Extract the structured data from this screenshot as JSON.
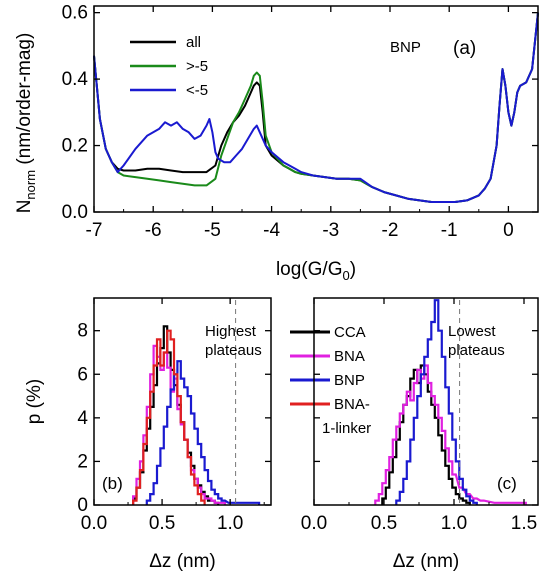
{
  "chart_data": [
    {
      "type": "line",
      "panel_label": "(a)",
      "annotation": "BNP",
      "xlabel": "log(G/G",
      "xlabel_sub": "0",
      "xlabel_close": ")",
      "ylabel_main": "N",
      "ylabel_sub": "norm",
      "ylabel_rest": " (nm/order-mag)",
      "xlim": [
        -7.0,
        0.5
      ],
      "ylim": [
        0.0,
        0.62
      ],
      "xticks": [
        -7,
        -6,
        -5,
        -4,
        -3,
        -2,
        -1,
        0
      ],
      "yticks": [
        0.0,
        0.2,
        0.4,
        0.6
      ],
      "ytick_labels": [
        "0.0",
        "0.2",
        "0.4",
        "0.6"
      ],
      "legend_position": "top-left",
      "series": [
        {
          "name": "all",
          "color": "#000000",
          "x": [
            -7.0,
            -6.9,
            -6.8,
            -6.7,
            -6.6,
            -6.5,
            -6.3,
            -6.1,
            -5.9,
            -5.7,
            -5.5,
            -5.3,
            -5.1,
            -4.95,
            -4.85,
            -4.75,
            -4.65,
            -4.55,
            -4.45,
            -4.35,
            -4.3,
            -4.25,
            -4.2,
            -4.15,
            -4.1,
            -4.0,
            -3.9,
            -3.8,
            -3.7,
            -3.6,
            -3.5,
            -3.3,
            -3.1,
            -2.9,
            -2.7,
            -2.5,
            -2.3,
            -2.1,
            -1.9,
            -1.7,
            -1.5,
            -1.3,
            -1.1,
            -0.9,
            -0.7,
            -0.5,
            -0.4,
            -0.3,
            -0.2,
            -0.15,
            -0.1,
            -0.05,
            0.0,
            0.05,
            0.1,
            0.15,
            0.2,
            0.3,
            0.4,
            0.5
          ],
          "y": [
            0.47,
            0.28,
            0.19,
            0.15,
            0.13,
            0.125,
            0.125,
            0.13,
            0.13,
            0.125,
            0.12,
            0.12,
            0.12,
            0.14,
            0.2,
            0.24,
            0.27,
            0.29,
            0.32,
            0.36,
            0.38,
            0.39,
            0.38,
            0.3,
            0.2,
            0.17,
            0.155,
            0.14,
            0.13,
            0.12,
            0.115,
            0.11,
            0.105,
            0.1,
            0.1,
            0.095,
            0.075,
            0.06,
            0.05,
            0.04,
            0.035,
            0.03,
            0.03,
            0.03,
            0.035,
            0.05,
            0.07,
            0.1,
            0.2,
            0.32,
            0.43,
            0.38,
            0.3,
            0.26,
            0.3,
            0.36,
            0.38,
            0.39,
            0.43,
            0.6
          ]
        },
        {
          "name": ">-5",
          "color": "#1a8a1a",
          "x": [
            -7.0,
            -6.9,
            -6.8,
            -6.7,
            -6.6,
            -6.5,
            -6.3,
            -6.1,
            -5.9,
            -5.7,
            -5.5,
            -5.3,
            -5.1,
            -4.95,
            -4.85,
            -4.75,
            -4.65,
            -4.55,
            -4.45,
            -4.35,
            -4.3,
            -4.25,
            -4.2,
            -4.15,
            -4.1,
            -4.0,
            -3.9,
            -3.8,
            -3.7,
            -3.6,
            -3.5,
            -3.3,
            -3.1,
            -2.9,
            -2.7,
            -2.5,
            -2.3,
            -2.1,
            -1.9,
            -1.7,
            -1.5,
            -1.3,
            -1.1,
            -0.9,
            -0.7,
            -0.5,
            -0.4,
            -0.3,
            -0.2,
            -0.15,
            -0.1,
            -0.05,
            0.0,
            0.05,
            0.1,
            0.15,
            0.2,
            0.3,
            0.4,
            0.5
          ],
          "y": [
            0.47,
            0.28,
            0.19,
            0.15,
            0.12,
            0.11,
            0.105,
            0.1,
            0.095,
            0.09,
            0.085,
            0.08,
            0.08,
            0.1,
            0.17,
            0.22,
            0.27,
            0.3,
            0.34,
            0.38,
            0.41,
            0.42,
            0.41,
            0.33,
            0.23,
            0.18,
            0.16,
            0.14,
            0.13,
            0.12,
            0.115,
            0.11,
            0.105,
            0.1,
            0.1,
            0.095,
            0.075,
            0.06,
            0.05,
            0.04,
            0.035,
            0.03,
            0.03,
            0.03,
            0.035,
            0.05,
            0.07,
            0.1,
            0.2,
            0.32,
            0.43,
            0.38,
            0.3,
            0.26,
            0.3,
            0.36,
            0.38,
            0.39,
            0.43,
            0.6
          ]
        },
        {
          "name": "<-5",
          "color": "#1a1ad0",
          "x": [
            -7.0,
            -6.9,
            -6.8,
            -6.7,
            -6.6,
            -6.5,
            -6.3,
            -6.1,
            -5.9,
            -5.8,
            -5.7,
            -5.6,
            -5.5,
            -5.4,
            -5.3,
            -5.2,
            -5.1,
            -5.05,
            -5.0,
            -4.95,
            -4.9,
            -4.8,
            -4.7,
            -4.6,
            -4.5,
            -4.4,
            -4.3,
            -4.25,
            -4.2,
            -4.1,
            -4.0,
            -3.9,
            -3.8,
            -3.7,
            -3.6,
            -3.5,
            -3.3,
            -3.1,
            -2.9,
            -2.7,
            -2.5,
            -2.3,
            -2.1,
            -1.9,
            -1.7,
            -1.5,
            -1.3,
            -1.1,
            -0.9,
            -0.7,
            -0.5,
            -0.4,
            -0.3,
            -0.2,
            -0.15,
            -0.1,
            -0.05,
            0.0,
            0.05,
            0.1,
            0.15,
            0.2,
            0.3,
            0.4,
            0.5
          ],
          "y": [
            0.47,
            0.28,
            0.19,
            0.15,
            0.12,
            0.14,
            0.19,
            0.23,
            0.25,
            0.27,
            0.26,
            0.27,
            0.25,
            0.24,
            0.22,
            0.23,
            0.26,
            0.28,
            0.24,
            0.18,
            0.16,
            0.15,
            0.15,
            0.17,
            0.19,
            0.22,
            0.25,
            0.26,
            0.24,
            0.2,
            0.18,
            0.165,
            0.15,
            0.14,
            0.13,
            0.12,
            0.11,
            0.105,
            0.1,
            0.1,
            0.1,
            0.075,
            0.06,
            0.05,
            0.04,
            0.035,
            0.03,
            0.03,
            0.03,
            0.035,
            0.05,
            0.07,
            0.1,
            0.2,
            0.32,
            0.43,
            0.38,
            0.3,
            0.26,
            0.3,
            0.36,
            0.38,
            0.39,
            0.43,
            0.6
          ]
        }
      ]
    },
    {
      "type": "histogram",
      "panel_label": "(b)",
      "annotation": [
        "Highest",
        "plateaus"
      ],
      "xlabel": "Δz (nm)",
      "ylabel": "p (%)",
      "xlim": [
        0.0,
        1.3
      ],
      "ylim": [
        0,
        9.5
      ],
      "xticks": [
        0.0,
        0.5,
        1.0
      ],
      "xtick_labels": [
        "0.0",
        "0.5",
        "1.0"
      ],
      "yticks": [
        0,
        2,
        4,
        6,
        8
      ],
      "dashed_line_x": 1.04,
      "bin_width": 0.025,
      "series": [
        {
          "name": "CCA",
          "color": "#000000",
          "x": [
            0.3,
            0.325,
            0.35,
            0.375,
            0.4,
            0.425,
            0.45,
            0.475,
            0.5,
            0.525,
            0.55,
            0.575,
            0.6,
            0.625,
            0.65,
            0.675,
            0.7,
            0.725,
            0.75,
            0.775,
            0.8,
            0.825,
            0.85,
            0.875,
            0.9
          ],
          "values": [
            0.3,
            0.8,
            1.5,
            2.5,
            3.5,
            4.5,
            5.5,
            6.5,
            7.2,
            8.2,
            7.0,
            6.2,
            5.5,
            4.6,
            3.8,
            3.0,
            2.4,
            1.8,
            1.2,
            0.9,
            0.6,
            0.4,
            0.2,
            0.2,
            0.1
          ]
        },
        {
          "name": "BNA",
          "color": "#e020e0",
          "x": [
            0.3,
            0.325,
            0.35,
            0.375,
            0.4,
            0.425,
            0.45,
            0.475,
            0.5,
            0.525,
            0.55,
            0.575,
            0.6,
            0.625,
            0.65,
            0.675,
            0.7,
            0.725,
            0.75,
            0.775,
            0.8,
            0.825,
            0.85,
            0.875,
            0.9,
            0.925,
            0.95
          ],
          "values": [
            0.4,
            1.2,
            2.0,
            3.2,
            4.5,
            6.0,
            7.3,
            6.8,
            6.2,
            7.0,
            6.3,
            5.2,
            5.8,
            4.4,
            3.7,
            3.0,
            2.2,
            1.6,
            1.2,
            0.8,
            0.5,
            0.3,
            0.3,
            0.2,
            0.1,
            0.1,
            0.1
          ]
        },
        {
          "name": "BNP",
          "color": "#1a1ad0",
          "x": [
            0.4,
            0.425,
            0.45,
            0.475,
            0.5,
            0.525,
            0.55,
            0.575,
            0.6,
            0.625,
            0.65,
            0.675,
            0.7,
            0.725,
            0.75,
            0.775,
            0.8,
            0.825,
            0.85,
            0.875,
            0.9,
            0.925,
            0.95,
            1.0,
            1.05,
            1.1,
            1.15,
            1.2
          ],
          "values": [
            0.2,
            0.5,
            1.0,
            1.8,
            2.6,
            3.6,
            4.5,
            5.3,
            6.0,
            6.6,
            5.8,
            5.4,
            5.0,
            4.2,
            3.5,
            2.8,
            2.2,
            1.6,
            1.1,
            0.7,
            0.5,
            0.3,
            0.2,
            0.1,
            0.1,
            0.1,
            0.1,
            0.1
          ]
        },
        {
          "name": "BNA-",
          "name_line2": "1-linker",
          "color": "#e02020",
          "x": [
            0.3,
            0.325,
            0.35,
            0.375,
            0.4,
            0.425,
            0.45,
            0.475,
            0.5,
            0.525,
            0.55,
            0.575,
            0.6,
            0.625,
            0.65,
            0.675,
            0.7,
            0.725,
            0.75,
            0.775,
            0.8
          ],
          "values": [
            0.2,
            0.8,
            1.6,
            2.8,
            4.0,
            5.2,
            6.4,
            7.6,
            6.4,
            7.0,
            8.0,
            7.6,
            6.0,
            5.0,
            3.8,
            3.0,
            2.2,
            1.4,
            0.9,
            0.5,
            0.2
          ]
        }
      ]
    },
    {
      "type": "histogram",
      "panel_label": "(c)",
      "annotation": [
        "Lowest",
        "plateaus"
      ],
      "xlabel": "Δz (nm)",
      "xlim": [
        0.0,
        1.6
      ],
      "ylim": [
        0,
        9.5
      ],
      "xticks": [
        0.0,
        0.5,
        1.0,
        1.5
      ],
      "xtick_labels": [
        "0.0",
        "0.5",
        "1.0",
        "1.5"
      ],
      "dashed_line_x": 1.04,
      "bin_width": 0.025,
      "series": [
        {
          "name": "CCA",
          "color": "#000000",
          "x": [
            0.5,
            0.525,
            0.55,
            0.575,
            0.6,
            0.625,
            0.65,
            0.675,
            0.7,
            0.725,
            0.75,
            0.775,
            0.8,
            0.825,
            0.85,
            0.875,
            0.9,
            0.925,
            0.95,
            0.975,
            1.0,
            1.025,
            1.05,
            1.075,
            1.1
          ],
          "values": [
            0.3,
            0.8,
            1.5,
            2.2,
            3.0,
            3.8,
            4.6,
            5.0,
            5.8,
            6.2,
            5.6,
            6.4,
            6.0,
            5.2,
            4.6,
            4.0,
            3.2,
            2.5,
            1.8,
            1.2,
            0.8,
            0.5,
            0.3,
            0.2,
            0.1
          ]
        },
        {
          "name": "BNA",
          "color": "#e020e0",
          "x": [
            0.45,
            0.475,
            0.5,
            0.525,
            0.55,
            0.575,
            0.6,
            0.625,
            0.65,
            0.675,
            0.7,
            0.725,
            0.75,
            0.775,
            0.8,
            0.825,
            0.85,
            0.875,
            0.9,
            0.925,
            0.95,
            0.975,
            1.0,
            1.05,
            1.1,
            1.15,
            1.2,
            1.3,
            1.4,
            1.5
          ],
          "values": [
            0.2,
            0.5,
            1.0,
            1.6,
            2.2,
            3.0,
            3.6,
            4.2,
            4.6,
            5.2,
            4.8,
            5.6,
            6.2,
            5.8,
            6.4,
            5.6,
            5.0,
            4.6,
            4.0,
            3.4,
            2.6,
            2.0,
            1.4,
            0.8,
            0.5,
            0.3,
            0.2,
            0.1,
            0.1,
            0.1
          ]
        },
        {
          "name": "BNP",
          "color": "#1a1ad0",
          "x": [
            0.6,
            0.625,
            0.65,
            0.675,
            0.7,
            0.725,
            0.75,
            0.775,
            0.8,
            0.825,
            0.85,
            0.875,
            0.9,
            0.925,
            0.95,
            0.975,
            1.0,
            1.025,
            1.05,
            1.075,
            1.1,
            1.125,
            1.15
          ],
          "values": [
            0.2,
            0.6,
            1.2,
            2.0,
            3.0,
            4.0,
            5.0,
            6.0,
            6.8,
            7.6,
            8.4,
            9.4,
            8.0,
            6.8,
            5.4,
            4.2,
            3.0,
            2.0,
            1.2,
            0.7,
            0.4,
            0.2,
            0.1
          ]
        }
      ]
    }
  ]
}
